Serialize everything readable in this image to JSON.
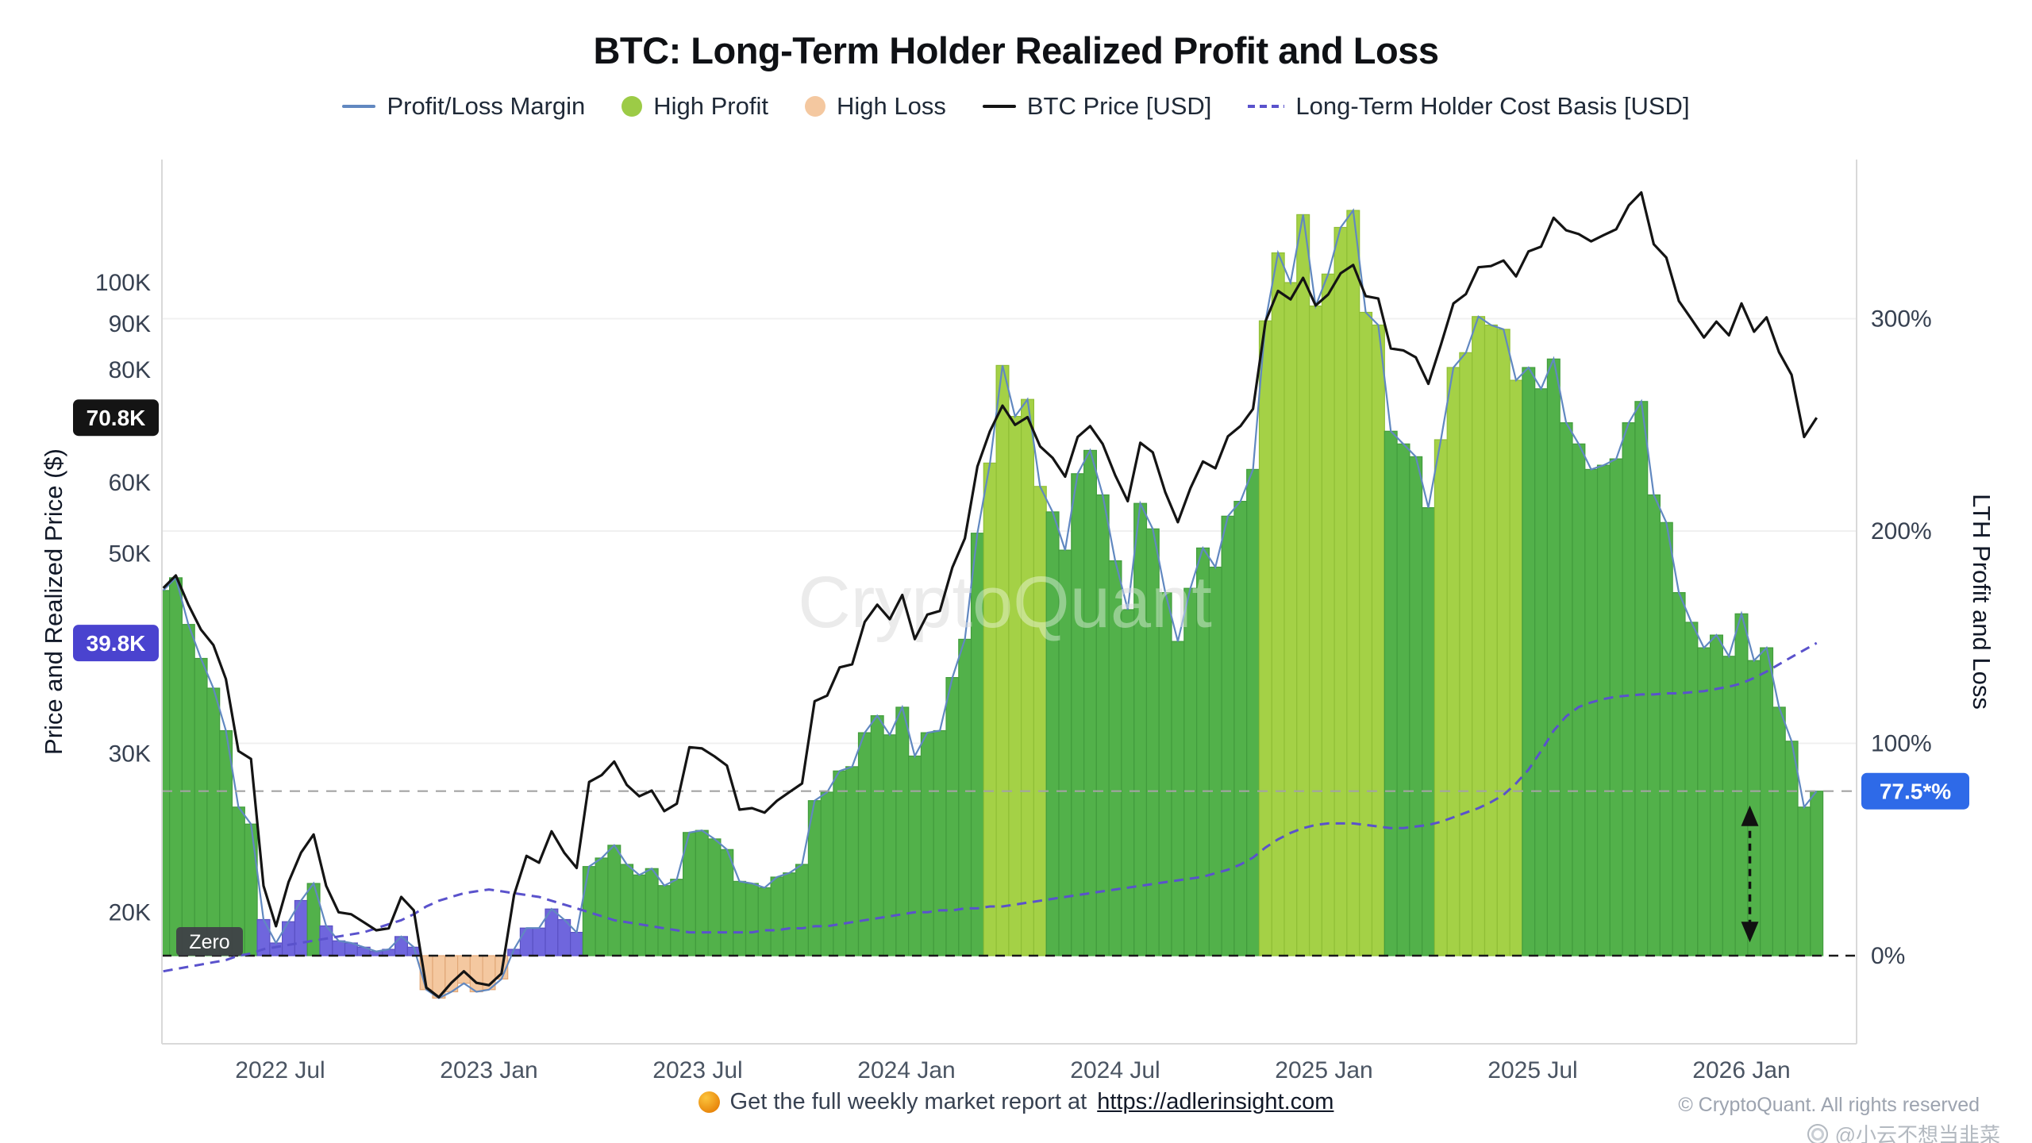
{
  "title": "BTC: Long-Term Holder Realized Profit and Loss",
  "legend": {
    "items": [
      {
        "label": "Profit/Loss Margin",
        "marker": "line",
        "color": "#6188c0"
      },
      {
        "label": "High Profit",
        "marker": "circle",
        "color": "#9ccb46"
      },
      {
        "label": "High Loss",
        "marker": "circle",
        "color": "#f4c8a0"
      },
      {
        "label": "BTC Price [USD]",
        "marker": "line",
        "color": "#141414"
      },
      {
        "label": "Long-Term Holder Cost Basis [USD]",
        "marker": "dashed-line",
        "color": "#5a52cc"
      }
    ]
  },
  "axes": {
    "left": {
      "title": "Price and Realized Price ($)",
      "ticks": [
        {
          "label": "100K",
          "value": 100
        },
        {
          "label": "90K",
          "value": 90
        },
        {
          "label": "80K",
          "value": 80
        },
        {
          "label": "60K",
          "value": 60
        },
        {
          "label": "50K",
          "value": 50
        },
        {
          "label": "30K",
          "value": 30
        },
        {
          "label": "20K",
          "value": 20
        }
      ],
      "badges": [
        {
          "label": "70.8K",
          "value": 70.8,
          "bg": "#141414"
        },
        {
          "label": "39.8K",
          "value": 39.8,
          "bg": "#4a43cf"
        }
      ]
    },
    "right": {
      "title": "LTH Profit and Loss",
      "ticks": [
        {
          "label": "300%",
          "value": 300
        },
        {
          "label": "200%",
          "value": 200
        },
        {
          "label": "100%",
          "value": 100
        },
        {
          "label": "0%",
          "value": 0
        }
      ],
      "badge": {
        "label": "77.5*%",
        "value": 77.5,
        "bg": "#2e6ae8"
      }
    },
    "x": {
      "ticks": [
        {
          "label": "2022 Jul",
          "t": 2022.5
        },
        {
          "label": "2023 Jan",
          "t": 2023.0
        },
        {
          "label": "2023 Jul",
          "t": 2023.5
        },
        {
          "label": "2024 Jan",
          "t": 2024.0
        },
        {
          "label": "2024 Jul",
          "t": 2024.5
        },
        {
          "label": "2025 Jan",
          "t": 2025.0
        },
        {
          "label": "2025 Jul",
          "t": 2025.5
        },
        {
          "label": "2026 Jan",
          "t": 2026.0
        }
      ]
    }
  },
  "annotations": {
    "zero_label": "Zero",
    "current_margin_line_pct": 77.5,
    "zero_line_pct": 0,
    "arrow": {
      "t": 2026.02,
      "from_pct": 7,
      "to_pct": 70
    }
  },
  "watermark": "CryptoQuant",
  "footer": {
    "text": "Get the full weekly market report at",
    "link": "https://adlerinsight.com",
    "copyright": "© CryptoQuant. All rights reserved",
    "credit": "@小云不想当韭菜"
  },
  "chart_data": {
    "type": "area",
    "title": "BTC: Long-Term Holder Realized Profit and Loss",
    "x_unit": "decimal_year",
    "x_range": [
      2022.22,
      2026.18
    ],
    "x_ticks": [
      "2022 Jul",
      "2023 Jan",
      "2023 Jul",
      "2024 Jan",
      "2024 Jul",
      "2025 Jan",
      "2025 Jul",
      "2026 Jan"
    ],
    "left_axis": {
      "label": "Price and Realized Price ($)",
      "scale": "log",
      "ticks_kusd": [
        20,
        30,
        50,
        60,
        80,
        90,
        100
      ],
      "current_btc_price_kusd": 70.8,
      "current_lth_cost_basis_kusd": 39.8
    },
    "right_axis": {
      "label": "LTH Profit and Loss",
      "scale": "linear",
      "ticks_pct": [
        0,
        100,
        200,
        300
      ],
      "current_margin_pct": 77.5
    },
    "low_margin_threshold": 30,
    "high_profit_bands": [
      [
        2024.19,
        2024.33
      ],
      [
        2024.85,
        2025.15
      ],
      [
        2025.28,
        2025.46
      ]
    ],
    "high_loss_band": [
      2022.84,
      2023.04
    ],
    "columns": [
      "year",
      "btc_price_kusd",
      "lth_cost_basis_kusd",
      "profit_loss_margin_pct"
    ],
    "points": [
      [
        2022.22,
        45.8,
        17.2,
        172
      ],
      [
        2022.25,
        47.3,
        17.3,
        178
      ],
      [
        2022.28,
        43.9,
        17.4,
        156
      ],
      [
        2022.31,
        41.2,
        17.5,
        140
      ],
      [
        2022.34,
        39.6,
        17.6,
        126
      ],
      [
        2022.37,
        36.3,
        17.7,
        106
      ],
      [
        2022.4,
        30.2,
        17.9,
        70
      ],
      [
        2022.43,
        29.6,
        18.0,
        62
      ],
      [
        2022.46,
        21.4,
        18.2,
        17
      ],
      [
        2022.49,
        19.3,
        18.3,
        6
      ],
      [
        2022.52,
        21.6,
        18.4,
        16
      ],
      [
        2022.55,
        23.3,
        18.5,
        26
      ],
      [
        2022.58,
        24.4,
        18.6,
        34
      ],
      [
        2022.61,
        21.4,
        18.7,
        14
      ],
      [
        2022.64,
        20.0,
        18.8,
        7
      ],
      [
        2022.67,
        19.9,
        18.9,
        6
      ],
      [
        2022.7,
        19.5,
        19.0,
        4
      ],
      [
        2022.73,
        19.1,
        19.2,
        2
      ],
      [
        2022.76,
        19.2,
        19.4,
        3
      ],
      [
        2022.79,
        20.8,
        19.6,
        9
      ],
      [
        2022.82,
        20.1,
        19.9,
        4
      ],
      [
        2022.85,
        16.5,
        20.3,
        -16
      ],
      [
        2022.88,
        16.1,
        20.6,
        -20
      ],
      [
        2022.91,
        16.7,
        20.8,
        -17
      ],
      [
        2022.94,
        17.2,
        21.0,
        -13
      ],
      [
        2022.97,
        16.7,
        21.1,
        -17
      ],
      [
        2023.0,
        16.6,
        21.2,
        -16
      ],
      [
        2023.03,
        17.1,
        21.1,
        -11
      ],
      [
        2023.06,
        20.9,
        21.0,
        3
      ],
      [
        2023.09,
        23.1,
        20.9,
        13
      ],
      [
        2023.12,
        22.7,
        20.8,
        13
      ],
      [
        2023.15,
        24.6,
        20.6,
        22
      ],
      [
        2023.18,
        23.3,
        20.4,
        17
      ],
      [
        2023.21,
        22.4,
        20.2,
        11
      ],
      [
        2023.24,
        27.9,
        20.0,
        42
      ],
      [
        2023.27,
        28.4,
        19.8,
        46
      ],
      [
        2023.3,
        29.4,
        19.6,
        52
      ],
      [
        2023.33,
        27.7,
        19.5,
        43
      ],
      [
        2023.36,
        26.9,
        19.4,
        38
      ],
      [
        2023.39,
        27.3,
        19.3,
        41
      ],
      [
        2023.42,
        25.9,
        19.2,
        33
      ],
      [
        2023.45,
        26.4,
        19.1,
        36
      ],
      [
        2023.48,
        30.5,
        19.0,
        58
      ],
      [
        2023.51,
        30.4,
        19.0,
        59
      ],
      [
        2023.54,
        29.8,
        19.0,
        55
      ],
      [
        2023.57,
        29.1,
        19.0,
        50
      ],
      [
        2023.6,
        26.0,
        19.0,
        35
      ],
      [
        2023.63,
        26.1,
        19.0,
        34
      ],
      [
        2023.66,
        25.8,
        19.1,
        32
      ],
      [
        2023.69,
        26.6,
        19.1,
        37
      ],
      [
        2023.72,
        27.2,
        19.2,
        39
      ],
      [
        2023.75,
        27.8,
        19.2,
        43
      ],
      [
        2023.78,
        34.3,
        19.3,
        73
      ],
      [
        2023.81,
        34.8,
        19.3,
        77
      ],
      [
        2023.84,
        37.4,
        19.4,
        87
      ],
      [
        2023.87,
        37.7,
        19.5,
        89
      ],
      [
        2023.9,
        42.0,
        19.6,
        105
      ],
      [
        2023.93,
        43.9,
        19.7,
        113
      ],
      [
        2023.96,
        42.3,
        19.8,
        104
      ],
      [
        2023.99,
        45.0,
        19.9,
        117
      ],
      [
        2024.02,
        40.2,
        20.0,
        94
      ],
      [
        2024.05,
        42.8,
        20.0,
        105
      ],
      [
        2024.08,
        43.2,
        20.1,
        106
      ],
      [
        2024.11,
        48.3,
        20.1,
        131
      ],
      [
        2024.14,
        52.0,
        20.2,
        149
      ],
      [
        2024.17,
        62.5,
        20.2,
        199
      ],
      [
        2024.2,
        68.4,
        20.3,
        232
      ],
      [
        2024.23,
        73.0,
        20.3,
        278
      ],
      [
        2024.26,
        69.5,
        20.4,
        254
      ],
      [
        2024.29,
        70.9,
        20.5,
        262
      ],
      [
        2024.32,
        65.8,
        20.6,
        221
      ],
      [
        2024.35,
        63.9,
        20.7,
        209
      ],
      [
        2024.38,
        60.9,
        20.8,
        191
      ],
      [
        2024.41,
        67.4,
        20.9,
        227
      ],
      [
        2024.44,
        69.3,
        21.0,
        238
      ],
      [
        2024.47,
        66.2,
        21.1,
        217
      ],
      [
        2024.5,
        61.1,
        21.2,
        186
      ],
      [
        2024.53,
        57.2,
        21.3,
        163
      ],
      [
        2024.56,
        66.4,
        21.4,
        213
      ],
      [
        2024.59,
        64.8,
        21.5,
        201
      ],
      [
        2024.62,
        58.5,
        21.6,
        171
      ],
      [
        2024.65,
        54.2,
        21.7,
        148
      ],
      [
        2024.68,
        59.1,
        21.8,
        173
      ],
      [
        2024.71,
        63.3,
        21.9,
        192
      ],
      [
        2024.74,
        62.2,
        22.1,
        183
      ],
      [
        2024.77,
        67.5,
        22.3,
        207
      ],
      [
        2024.8,
        69.3,
        22.6,
        214
      ],
      [
        2024.83,
        72.4,
        23.0,
        229
      ],
      [
        2024.86,
        90.6,
        23.6,
        299
      ],
      [
        2024.89,
        97.9,
        24.1,
        331
      ],
      [
        2024.92,
        95.8,
        24.5,
        317
      ],
      [
        2024.95,
        101.2,
        24.8,
        349
      ],
      [
        2024.98,
        94.3,
        25.0,
        306
      ],
      [
        2025.01,
        97.0,
        25.1,
        321
      ],
      [
        2025.04,
        102.4,
        25.1,
        343
      ],
      [
        2025.07,
        104.6,
        25.1,
        351
      ],
      [
        2025.1,
        96.6,
        25.0,
        303
      ],
      [
        2025.13,
        96.0,
        24.9,
        297
      ],
      [
        2025.16,
        84.5,
        24.8,
        247
      ],
      [
        2025.19,
        84.1,
        24.8,
        241
      ],
      [
        2025.22,
        82.6,
        24.9,
        235
      ],
      [
        2025.25,
        77.2,
        25.0,
        211
      ],
      [
        2025.28,
        85.3,
        25.2,
        243
      ],
      [
        2025.31,
        94.8,
        25.5,
        277
      ],
      [
        2025.34,
        97.1,
        25.8,
        284
      ],
      [
        2025.37,
        104.0,
        26.1,
        301
      ],
      [
        2025.4,
        104.3,
        26.5,
        297
      ],
      [
        2025.43,
        105.8,
        27.0,
        295
      ],
      [
        2025.46,
        101.6,
        27.8,
        271
      ],
      [
        2025.49,
        108.3,
        28.8,
        277
      ],
      [
        2025.52,
        109.6,
        30.2,
        267
      ],
      [
        2025.55,
        118.0,
        31.8,
        281
      ],
      [
        2025.58,
        114.3,
        33.0,
        251
      ],
      [
        2025.61,
        113.2,
        33.8,
        241
      ],
      [
        2025.64,
        111.1,
        34.2,
        229
      ],
      [
        2025.67,
        112.9,
        34.5,
        231
      ],
      [
        2025.7,
        114.6,
        34.7,
        234
      ],
      [
        2025.73,
        121.8,
        34.8,
        251
      ],
      [
        2025.76,
        125.9,
        34.9,
        261
      ],
      [
        2025.79,
        110.3,
        34.9,
        217
      ],
      [
        2025.82,
        106.6,
        35.0,
        204
      ],
      [
        2025.85,
        95.4,
        35.0,
        171
      ],
      [
        2025.88,
        91.1,
        35.1,
        157
      ],
      [
        2025.91,
        86.9,
        35.2,
        145
      ],
      [
        2025.94,
        90.5,
        35.4,
        151
      ],
      [
        2025.97,
        87.4,
        35.6,
        141
      ],
      [
        2026.0,
        94.8,
        35.9,
        161
      ],
      [
        2026.03,
        88.2,
        36.4,
        139
      ],
      [
        2026.06,
        91.5,
        37.0,
        145
      ],
      [
        2026.09,
        83.7,
        37.7,
        117
      ],
      [
        2026.12,
        79.0,
        38.4,
        101
      ],
      [
        2026.15,
        67.4,
        39.1,
        70
      ],
      [
        2026.18,
        70.8,
        39.8,
        77.5
      ]
    ],
    "colors": {
      "profit": "#52b14a",
      "profit_edge": "#419c3d",
      "high_profit": "#a4d146",
      "high_profit_edge": "#8fbe36",
      "low_margin": "#6f66dd",
      "low_margin_edge": "#5a51c4",
      "loss": "#f4c8a0",
      "loss_edge": "#e2a878",
      "margin_line": "#6188c0",
      "price_line": "#141414",
      "basis_line": "#5a52cc",
      "zero_line": "#1a1a1a",
      "current_margin_dashed": "#a3a3a3"
    }
  }
}
